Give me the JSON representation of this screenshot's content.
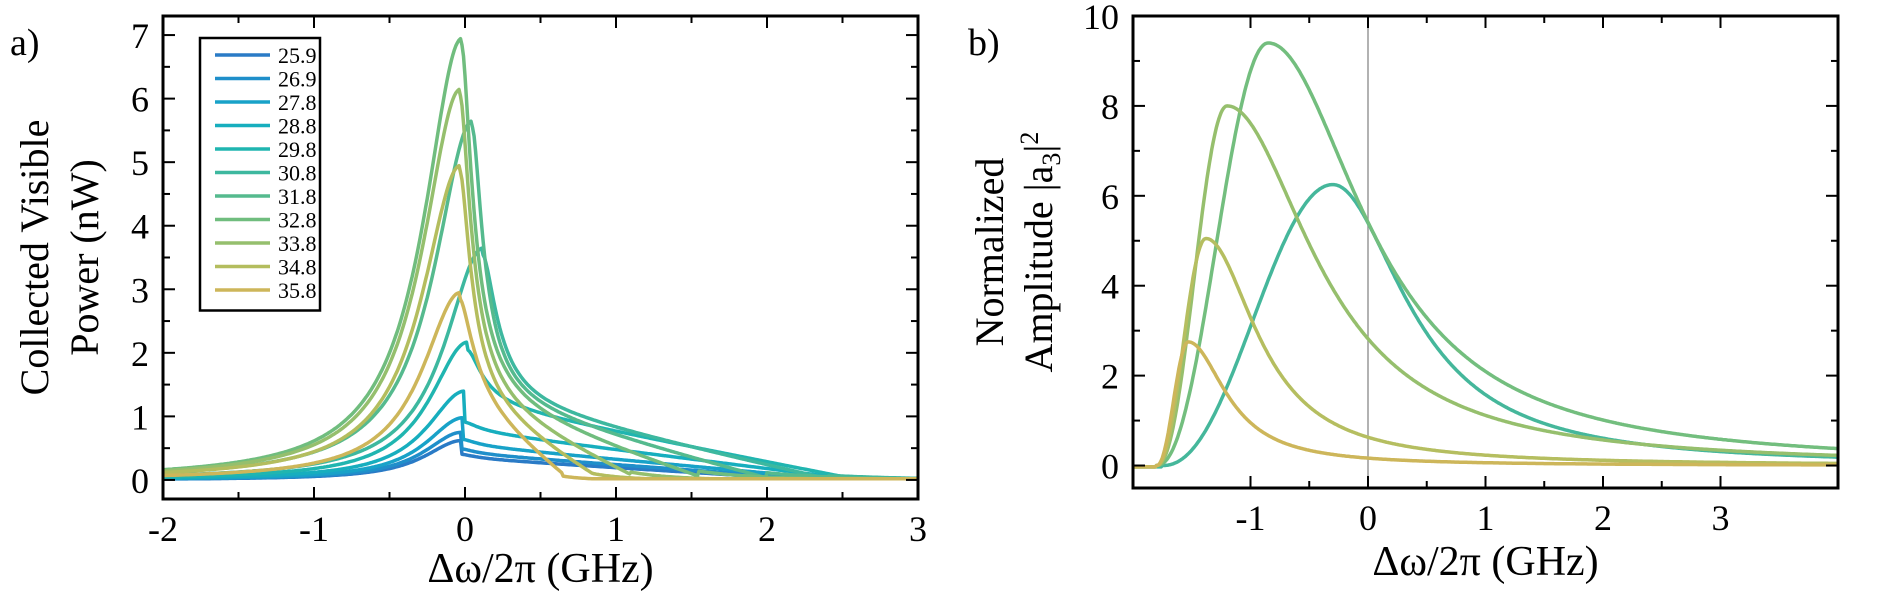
{
  "chart_data": [
    {
      "panel_label": "a)",
      "type": "line",
      "xlabel": "Δω/2π (GHz)",
      "ylabel_lines": [
        "Collected  Visible",
        "Power (nW)"
      ],
      "xlim": [
        -2,
        3
      ],
      "ylim": [
        -0.3,
        7.3
      ],
      "xticks": [
        -2,
        -1,
        0,
        1,
        2,
        3
      ],
      "yticks": [
        0,
        1,
        2,
        3,
        4,
        5,
        6,
        7
      ],
      "legend_position": "top-left",
      "legend_entries": [
        "25.9",
        "26.9",
        "27.8",
        "28.8",
        "29.8",
        "30.8",
        "31.8",
        "32.8",
        "33.8",
        "34.8",
        "35.8"
      ],
      "series": [
        {
          "name": "25.9",
          "color": "#2a7bc6",
          "peak_x": -0.02,
          "peak": 0.62,
          "fall_end": 2.3
        },
        {
          "name": "26.9",
          "color": "#1f8fca",
          "peak_x": -0.02,
          "peak": 0.75,
          "fall_end": 2.4
        },
        {
          "name": "27.8",
          "color": "#18a2c8",
          "peak_x": -0.01,
          "peak": 0.98,
          "fall_end": 2.5
        },
        {
          "name": "28.8",
          "color": "#17aebe",
          "peak_x": 0.0,
          "peak": 1.4,
          "fall_end": 2.6
        },
        {
          "name": "29.8",
          "color": "#20b5b0",
          "peak_x": 0.02,
          "peak": 2.17,
          "fall_end": 2.6
        },
        {
          "name": "30.8",
          "color": "#3db89f",
          "peak_x": 0.12,
          "peak": 3.65,
          "fall_end": 2.4
        },
        {
          "name": "31.8",
          "color": "#55ba8e",
          "peak_x": 0.05,
          "peak": 5.65,
          "fall_end": 2.0
        },
        {
          "name": "32.8",
          "color": "#70bd7e",
          "peak_x": -0.02,
          "peak": 6.95,
          "fall_end": 1.55
        },
        {
          "name": "33.8",
          "color": "#95bf6d",
          "peak_x": -0.03,
          "peak": 6.15,
          "fall_end": 1.1
        },
        {
          "name": "34.8",
          "color": "#b4bd5e",
          "peak_x": -0.03,
          "peak": 4.95,
          "fall_end": 0.85
        },
        {
          "name": "35.8",
          "color": "#cdb65a",
          "peak_x": -0.03,
          "peak": 2.95,
          "fall_end": 0.65
        }
      ]
    },
    {
      "panel_label": "b)",
      "type": "line",
      "xlabel": "Δω/2π (GHz)",
      "ylabel_line1": "Normalized",
      "ylabel_line2": "Amplitude |a",
      "ylabel_sub": "3",
      "ylabel_end": "|",
      "ylabel_sup": "2",
      "xlim": [
        -2,
        4
      ],
      "ylim": [
        -0.5,
        10
      ],
      "xticks": [
        -1,
        0,
        1,
        2,
        3
      ],
      "yticks": [
        0,
        2,
        4,
        6,
        8,
        10
      ],
      "vertical_line_x": 0,
      "series": [
        {
          "color": "#45b79b",
          "peak_x": -0.3,
          "peak": 6.25,
          "onset": -1.75
        },
        {
          "color": "#73be7e",
          "peak_x": -0.85,
          "peak": 9.4,
          "onset": -1.8
        },
        {
          "color": "#96bf6d",
          "peak_x": -1.2,
          "peak": 8.0,
          "onset": -1.8
        },
        {
          "color": "#b5be60",
          "peak_x": -1.38,
          "peak": 5.05,
          "onset": -1.8
        },
        {
          "color": "#cdb65a",
          "peak_x": -1.53,
          "peak": 2.75,
          "onset": -1.8
        }
      ]
    }
  ]
}
